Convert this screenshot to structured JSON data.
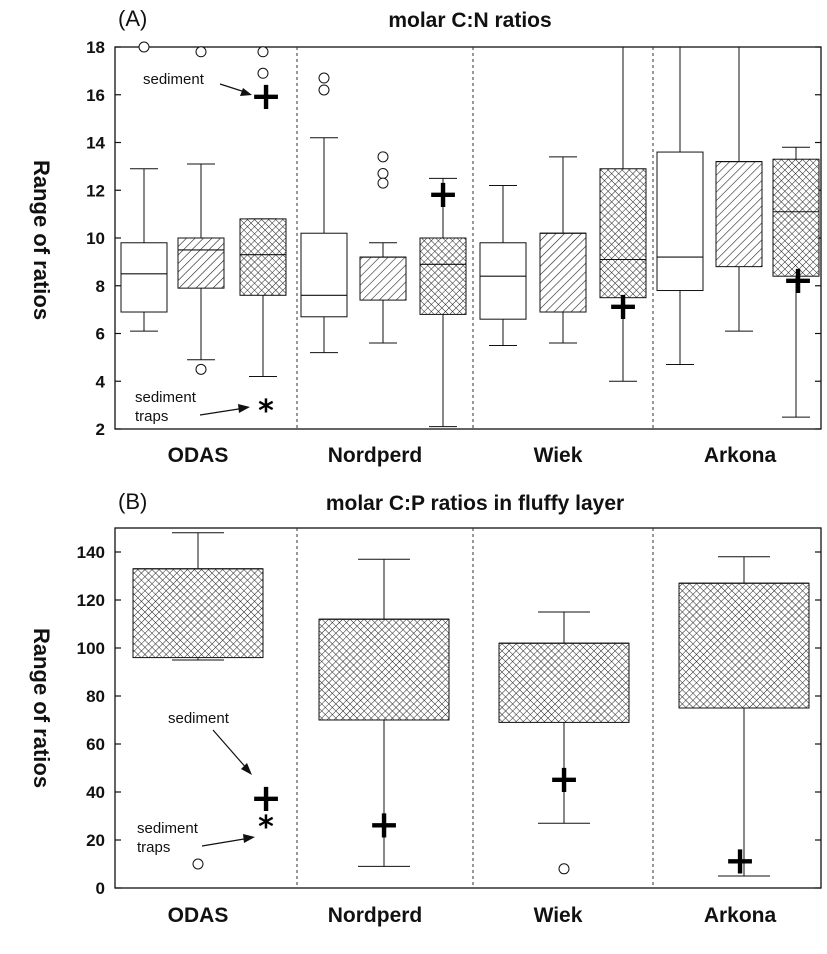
{
  "chart_data": [
    {
      "panel_label": "(A)",
      "title": "molar C:N ratios",
      "ylabel": "Range of ratios",
      "ylim": [
        2,
        18
      ],
      "yticks": [
        2,
        4,
        6,
        8,
        10,
        12,
        14,
        16,
        18
      ],
      "type": "box",
      "categories": [
        "ODAS",
        "Nordperd",
        "Wiek",
        "Arkona"
      ],
      "fill_patterns": [
        "open",
        "diagonal",
        "crosshatch"
      ],
      "boxes": [
        {
          "group": 0,
          "pattern": "open",
          "whisker_low": 6.1,
          "q1": 6.9,
          "median": 8.5,
          "q3": 9.8,
          "whisker_high": 12.9,
          "outliers": [
            18.0
          ]
        },
        {
          "group": 0,
          "pattern": "diagonal",
          "whisker_low": 4.9,
          "q1": 7.9,
          "median": 9.5,
          "q3": 10.0,
          "whisker_high": 13.1,
          "outliers": [
            17.8,
            4.5
          ]
        },
        {
          "group": 0,
          "pattern": "crosshatch",
          "whisker_low": 4.2,
          "q1": 7.6,
          "median": 9.3,
          "q3": 10.8,
          "whisker_high": 10.8,
          "outliers": [
            17.8,
            16.9
          ]
        },
        {
          "group": 1,
          "pattern": "open",
          "whisker_low": 5.2,
          "q1": 6.7,
          "median": 7.6,
          "q3": 10.2,
          "whisker_high": 14.2,
          "outliers": [
            16.7,
            16.2
          ]
        },
        {
          "group": 1,
          "pattern": "diagonal",
          "whisker_low": 5.6,
          "q1": 7.4,
          "median": 9.2,
          "q3": 9.2,
          "whisker_high": 9.8,
          "outliers": [
            13.4,
            12.7,
            12.3
          ]
        },
        {
          "group": 1,
          "pattern": "crosshatch",
          "whisker_low": 2.1,
          "q1": 6.8,
          "median": 8.9,
          "q3": 10.0,
          "whisker_high": 12.5,
          "outliers": []
        },
        {
          "group": 2,
          "pattern": "open",
          "whisker_low": 5.5,
          "q1": 6.6,
          "median": 8.4,
          "q3": 9.8,
          "whisker_high": 12.2,
          "outliers": []
        },
        {
          "group": 2,
          "pattern": "diagonal",
          "whisker_low": 5.6,
          "q1": 6.9,
          "median": 10.2,
          "q3": 10.2,
          "whisker_high": 13.4,
          "outliers": []
        },
        {
          "group": 2,
          "pattern": "crosshatch",
          "whisker_low": 4.0,
          "q1": 7.5,
          "median": 9.1,
          "q3": 12.9,
          "whisker_high": 18.0,
          "outliers": []
        },
        {
          "group": 3,
          "pattern": "open",
          "whisker_low": 4.7,
          "q1": 7.8,
          "median": 9.2,
          "q3": 13.6,
          "whisker_high": 18.0,
          "outliers": []
        },
        {
          "group": 3,
          "pattern": "diagonal",
          "whisker_low": 6.1,
          "q1": 8.8,
          "median": 13.2,
          "q3": 13.2,
          "whisker_high": 18.0,
          "outliers": []
        },
        {
          "group": 3,
          "pattern": "crosshatch",
          "whisker_low": 2.5,
          "q1": 8.4,
          "median": 11.1,
          "q3": 13.3,
          "whisker_high": 13.8,
          "outliers": []
        }
      ],
      "sediment_markers": [
        {
          "group": 0,
          "value": 15.9
        },
        {
          "group": 1,
          "value": 11.8
        },
        {
          "group": 2,
          "value": 7.1
        },
        {
          "group": 3,
          "value": 8.2
        }
      ],
      "sediment_trap_markers": [
        {
          "group": 0,
          "value": 3.0
        }
      ],
      "annotations": {
        "sediment": "sediment",
        "sediment_traps_line1": "sediment",
        "sediment_traps_line2": "traps",
        "plus_marker": "+",
        "star_marker": "*"
      }
    },
    {
      "panel_label": "(B)",
      "title": "molar C:P ratios in fluffy layer",
      "ylabel": "Range of ratios",
      "ylim": [
        0,
        150
      ],
      "yticks": [
        0,
        20,
        40,
        60,
        80,
        100,
        120,
        140
      ],
      "type": "box",
      "categories": [
        "ODAS",
        "Nordperd",
        "Wiek",
        "Arkona"
      ],
      "boxes": [
        {
          "group": 0,
          "pattern": "crosshatch",
          "whisker_low": 95,
          "q1": 96,
          "median": 133,
          "q3": 133,
          "whisker_high": 148,
          "outliers": [
            10
          ]
        },
        {
          "group": 1,
          "pattern": "crosshatch",
          "whisker_low": 9,
          "q1": 70,
          "median": 112,
          "q3": 112,
          "whisker_high": 137,
          "outliers": []
        },
        {
          "group": 2,
          "pattern": "crosshatch",
          "whisker_low": 27,
          "q1": 69,
          "median": 102,
          "q3": 102,
          "whisker_high": 115,
          "outliers": [
            8
          ]
        },
        {
          "group": 3,
          "pattern": "crosshatch",
          "whisker_low": 5,
          "q1": 75,
          "median": 127,
          "q3": 127,
          "whisker_high": 138,
          "outliers": []
        }
      ],
      "sediment_markers": [
        {
          "group": 0,
          "value": 37
        },
        {
          "group": 1,
          "value": 26
        },
        {
          "group": 2,
          "value": 45
        },
        {
          "group": 3,
          "value": 11
        }
      ],
      "sediment_trap_markers": [
        {
          "group": 0,
          "value": 28
        }
      ],
      "annotations": {
        "sediment": "sediment",
        "sediment_traps_line1": "sediment",
        "sediment_traps_line2": "traps",
        "plus_marker": "+",
        "star_marker": "*"
      }
    }
  ]
}
